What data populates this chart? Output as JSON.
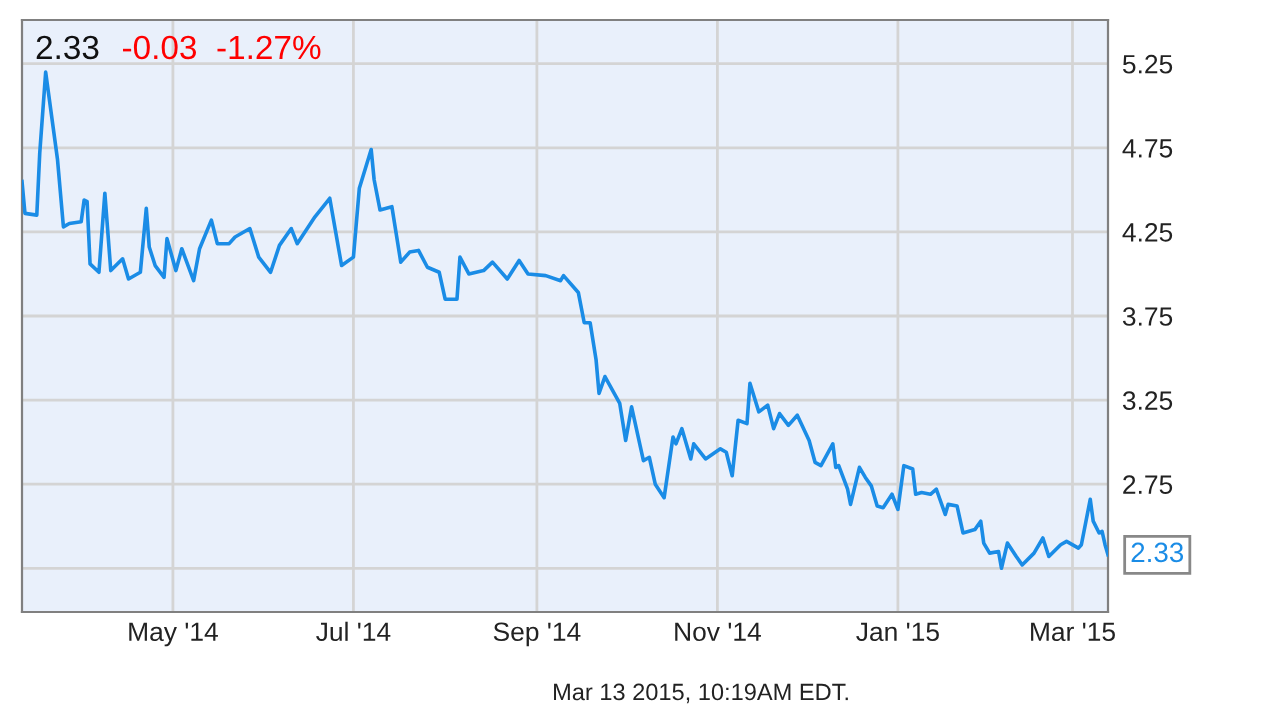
{
  "chart_data": {
    "type": "line",
    "title": "2.33",
    "subtitle": "-0.03  -1.27%",
    "annotations": [
      {
        "text": "2.33",
        "x": "2015-03-13",
        "y": 2.33
      },
      "Mar 13 2015, 10:19AM EDT."
    ],
    "x": [
      "2014-03-11",
      "2014-03-12",
      "2014-03-16",
      "2014-03-17",
      "2014-03-19",
      "2014-03-23",
      "2014-03-25",
      "2014-03-27",
      "2014-03-31",
      "2014-04-01",
      "2014-04-02",
      "2014-04-03",
      "2014-04-06",
      "2014-04-08",
      "2014-04-10",
      "2014-04-14",
      "2014-04-16",
      "2014-04-20",
      "2014-04-22",
      "2014-04-23",
      "2014-04-25",
      "2014-04-28",
      "2014-04-29",
      "2014-05-02",
      "2014-05-04",
      "2014-05-08",
      "2014-05-10",
      "2014-05-14",
      "2014-05-16",
      "2014-05-20",
      "2014-05-22",
      "2014-05-27",
      "2014-05-30",
      "2014-06-03",
      "2014-06-06",
      "2014-06-10",
      "2014-06-12",
      "2014-06-18",
      "2014-06-23",
      "2014-06-27",
      "2014-07-01",
      "2014-07-03",
      "2014-07-07",
      "2014-07-08",
      "2014-07-10",
      "2014-07-14",
      "2014-07-17",
      "2014-07-20",
      "2014-07-23",
      "2014-07-26",
      "2014-07-30",
      "2014-08-01",
      "2014-08-05",
      "2014-08-06",
      "2014-08-09",
      "2014-08-14",
      "2014-08-17",
      "2014-08-22",
      "2014-08-26",
      "2014-08-29",
      "2014-09-04",
      "2014-09-09",
      "2014-09-10",
      "2014-09-15",
      "2014-09-17",
      "2014-09-19",
      "2014-09-21",
      "2014-09-22",
      "2014-09-24",
      "2014-09-29",
      "2014-10-01",
      "2014-10-03",
      "2014-10-07",
      "2014-10-09",
      "2014-10-11",
      "2014-10-14",
      "2014-10-17",
      "2014-10-18",
      "2014-10-20",
      "2014-10-23",
      "2014-10-24",
      "2014-10-28",
      "2014-11-02",
      "2014-11-04",
      "2014-11-06",
      "2014-11-08",
      "2014-11-11",
      "2014-11-12",
      "2014-11-15",
      "2014-11-18",
      "2014-11-20",
      "2014-11-22",
      "2014-11-25",
      "2014-11-28",
      "2014-12-02",
      "2014-12-04",
      "2014-12-06",
      "2014-12-10",
      "2014-12-11",
      "2014-12-12",
      "2014-12-15",
      "2014-12-16",
      "2014-12-19",
      "2014-12-21",
      "2014-12-23",
      "2014-12-25",
      "2014-12-27",
      "2014-12-30",
      "2015-01-01",
      "2015-01-03",
      "2015-01-06",
      "2015-01-07",
      "2015-01-09",
      "2015-01-12",
      "2015-01-14",
      "2015-01-17",
      "2015-01-18",
      "2015-01-21",
      "2015-01-23",
      "2015-01-27",
      "2015-01-29",
      "2015-01-30",
      "2015-02-01",
      "2015-02-04",
      "2015-02-05",
      "2015-02-07",
      "2015-02-10",
      "2015-02-12",
      "2015-02-16",
      "2015-02-19",
      "2015-02-21",
      "2015-02-25",
      "2015-02-27",
      "2015-03-03",
      "2015-03-04",
      "2015-03-07",
      "2015-03-08",
      "2015-03-10",
      "2015-03-11",
      "2015-03-12",
      "2015-03-13"
    ],
    "series": [
      {
        "color": "#1a8ce6",
        "values": [
          4.55,
          4.36,
          4.35,
          4.72,
          5.2,
          4.68,
          4.28,
          4.3,
          4.31,
          4.44,
          4.43,
          4.06,
          4.01,
          4.48,
          4.02,
          4.09,
          3.97,
          4.01,
          4.39,
          4.16,
          4.05,
          3.98,
          4.21,
          4.02,
          4.15,
          3.96,
          4.15,
          4.32,
          4.18,
          4.18,
          4.22,
          4.27,
          4.1,
          4.01,
          4.17,
          4.27,
          4.18,
          4.34,
          4.45,
          4.05,
          4.1,
          4.51,
          4.74,
          4.56,
          4.38,
          4.4,
          4.07,
          4.13,
          4.14,
          4.04,
          4.01,
          3.85,
          3.85,
          4.1,
          4.0,
          4.02,
          4.07,
          3.97,
          4.08,
          4.0,
          3.99,
          3.96,
          3.99,
          3.89,
          3.71,
          3.71,
          3.49,
          3.29,
          3.39,
          3.23,
          3.01,
          3.21,
          2.89,
          2.91,
          2.75,
          2.67,
          3.03,
          2.99,
          3.08,
          2.9,
          2.99,
          2.9,
          2.96,
          2.94,
          2.8,
          3.13,
          3.11,
          3.35,
          3.18,
          3.22,
          3.08,
          3.17,
          3.1,
          3.16,
          3.01,
          2.88,
          2.86,
          2.99,
          2.85,
          2.86,
          2.72,
          2.63,
          2.85,
          2.79,
          2.74,
          2.62,
          2.61,
          2.69,
          2.6,
          2.86,
          2.84,
          2.69,
          2.7,
          2.69,
          2.72,
          2.57,
          2.63,
          2.62,
          2.46,
          2.48,
          2.53,
          2.4,
          2.34,
          2.35,
          2.25,
          2.4,
          2.32,
          2.27,
          2.34,
          2.43,
          2.32,
          2.39,
          2.41,
          2.37,
          2.39,
          2.66,
          2.53,
          2.46,
          2.47,
          2.39,
          2.33
        ]
      }
    ],
    "xlim": [
      "2014-03-11",
      "2015-03-13"
    ],
    "xticks": [
      {
        "value": "2014-05-01",
        "label": "May '14"
      },
      {
        "value": "2014-07-01",
        "label": "Jul '14"
      },
      {
        "value": "2014-09-01",
        "label": "Sep '14"
      },
      {
        "value": "2014-11-01",
        "label": "Nov '14"
      },
      {
        "value": "2015-01-01",
        "label": "Jan '15"
      },
      {
        "value": "2015-03-01",
        "label": "Mar '15"
      }
    ],
    "ylim": [
      1.99,
      5.51
    ],
    "yticks": [
      {
        "value": 2.25,
        "label": null
      },
      2.75,
      3.25,
      3.75,
      4.25,
      4.75,
      5.25
    ],
    "grid": true,
    "legend": false,
    "marker": "none",
    "line_style": "solid"
  }
}
